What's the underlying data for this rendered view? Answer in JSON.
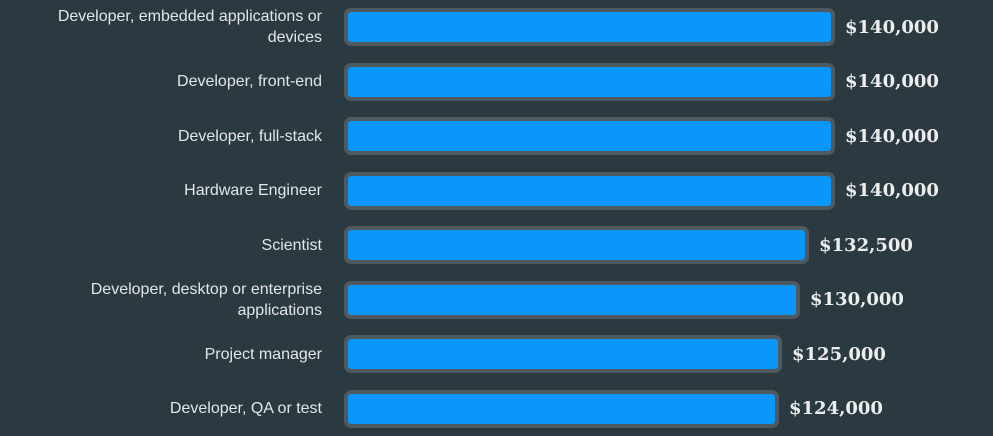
{
  "chart_data": {
    "type": "bar",
    "orientation": "horizontal",
    "title": "",
    "xlabel": "",
    "ylabel": "",
    "xlim": [
      0,
      140000
    ],
    "grid": false,
    "legend": false,
    "categories": [
      "Developer, embedded applications or devices",
      "Developer, front-end",
      "Developer, full-stack",
      "Hardware Engineer",
      "Scientist",
      "Developer, desktop or enterprise applications",
      "Project manager",
      "Developer, QA or test"
    ],
    "category_display_lines": [
      [
        "Developer, embedded applications or",
        "devices"
      ],
      [
        "Developer, front-end"
      ],
      [
        "Developer, full-stack"
      ],
      [
        "Hardware Engineer"
      ],
      [
        "Scientist"
      ],
      [
        "Developer, desktop or enterprise",
        "applications"
      ],
      [
        "Project manager"
      ],
      [
        "Developer, QA or test"
      ]
    ],
    "values": [
      140000,
      140000,
      140000,
      140000,
      132500,
      130000,
      125000,
      124000
    ],
    "value_labels": [
      "$140,000",
      "$140,000",
      "$140,000",
      "$140,000",
      "$132,500",
      "$130,000",
      "$125,000",
      "$124,000"
    ]
  },
  "colors": {
    "background": "#2b3a41",
    "bar_fill": "#0a96fb",
    "bar_border": "#4e5a60",
    "category_text": "#e3e6e6",
    "value_text": "#eceeee"
  }
}
